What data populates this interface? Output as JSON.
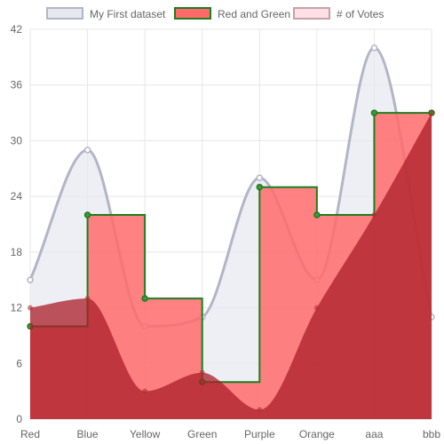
{
  "chart_data": {
    "type": "line",
    "categories": [
      "Red",
      "Blue",
      "Yellow",
      "Green",
      "Purple",
      "Orange",
      "aaa",
      "bbb"
    ],
    "ylim": [
      0,
      42
    ],
    "yticks": [
      0,
      6,
      12,
      18,
      24,
      30,
      36,
      42
    ],
    "grid": true,
    "legend_position": "top",
    "series": [
      {
        "name": "My First dataset",
        "style": "smooth-line-with-fill",
        "values": [
          15,
          29,
          10,
          11,
          26,
          15,
          40,
          11
        ],
        "line_color": "#b4b4c8",
        "fill_color": "#e6e8ef",
        "point_fill": "#ffffff",
        "fill_opacity": 0.7
      },
      {
        "name": "Red and Green",
        "style": "stepped-line-with-fill",
        "values": [
          10,
          22,
          13,
          4,
          25,
          22,
          33,
          33
        ],
        "line_color": "#1e7d1e",
        "fill_color": "#ff6b6b",
        "point_fill": "#3c9a3c",
        "fill_opacity": 0.85
      },
      {
        "name": "# of Votes",
        "style": "smooth-area",
        "values": [
          12,
          13,
          3,
          5,
          1,
          12,
          22,
          33
        ],
        "line_color": "#b03030",
        "fill_color": "#aa1e28",
        "legend_fill": "#ffe0e6",
        "legend_stroke": "#c8a0a8",
        "fill_opacity": 0.75
      }
    ]
  }
}
